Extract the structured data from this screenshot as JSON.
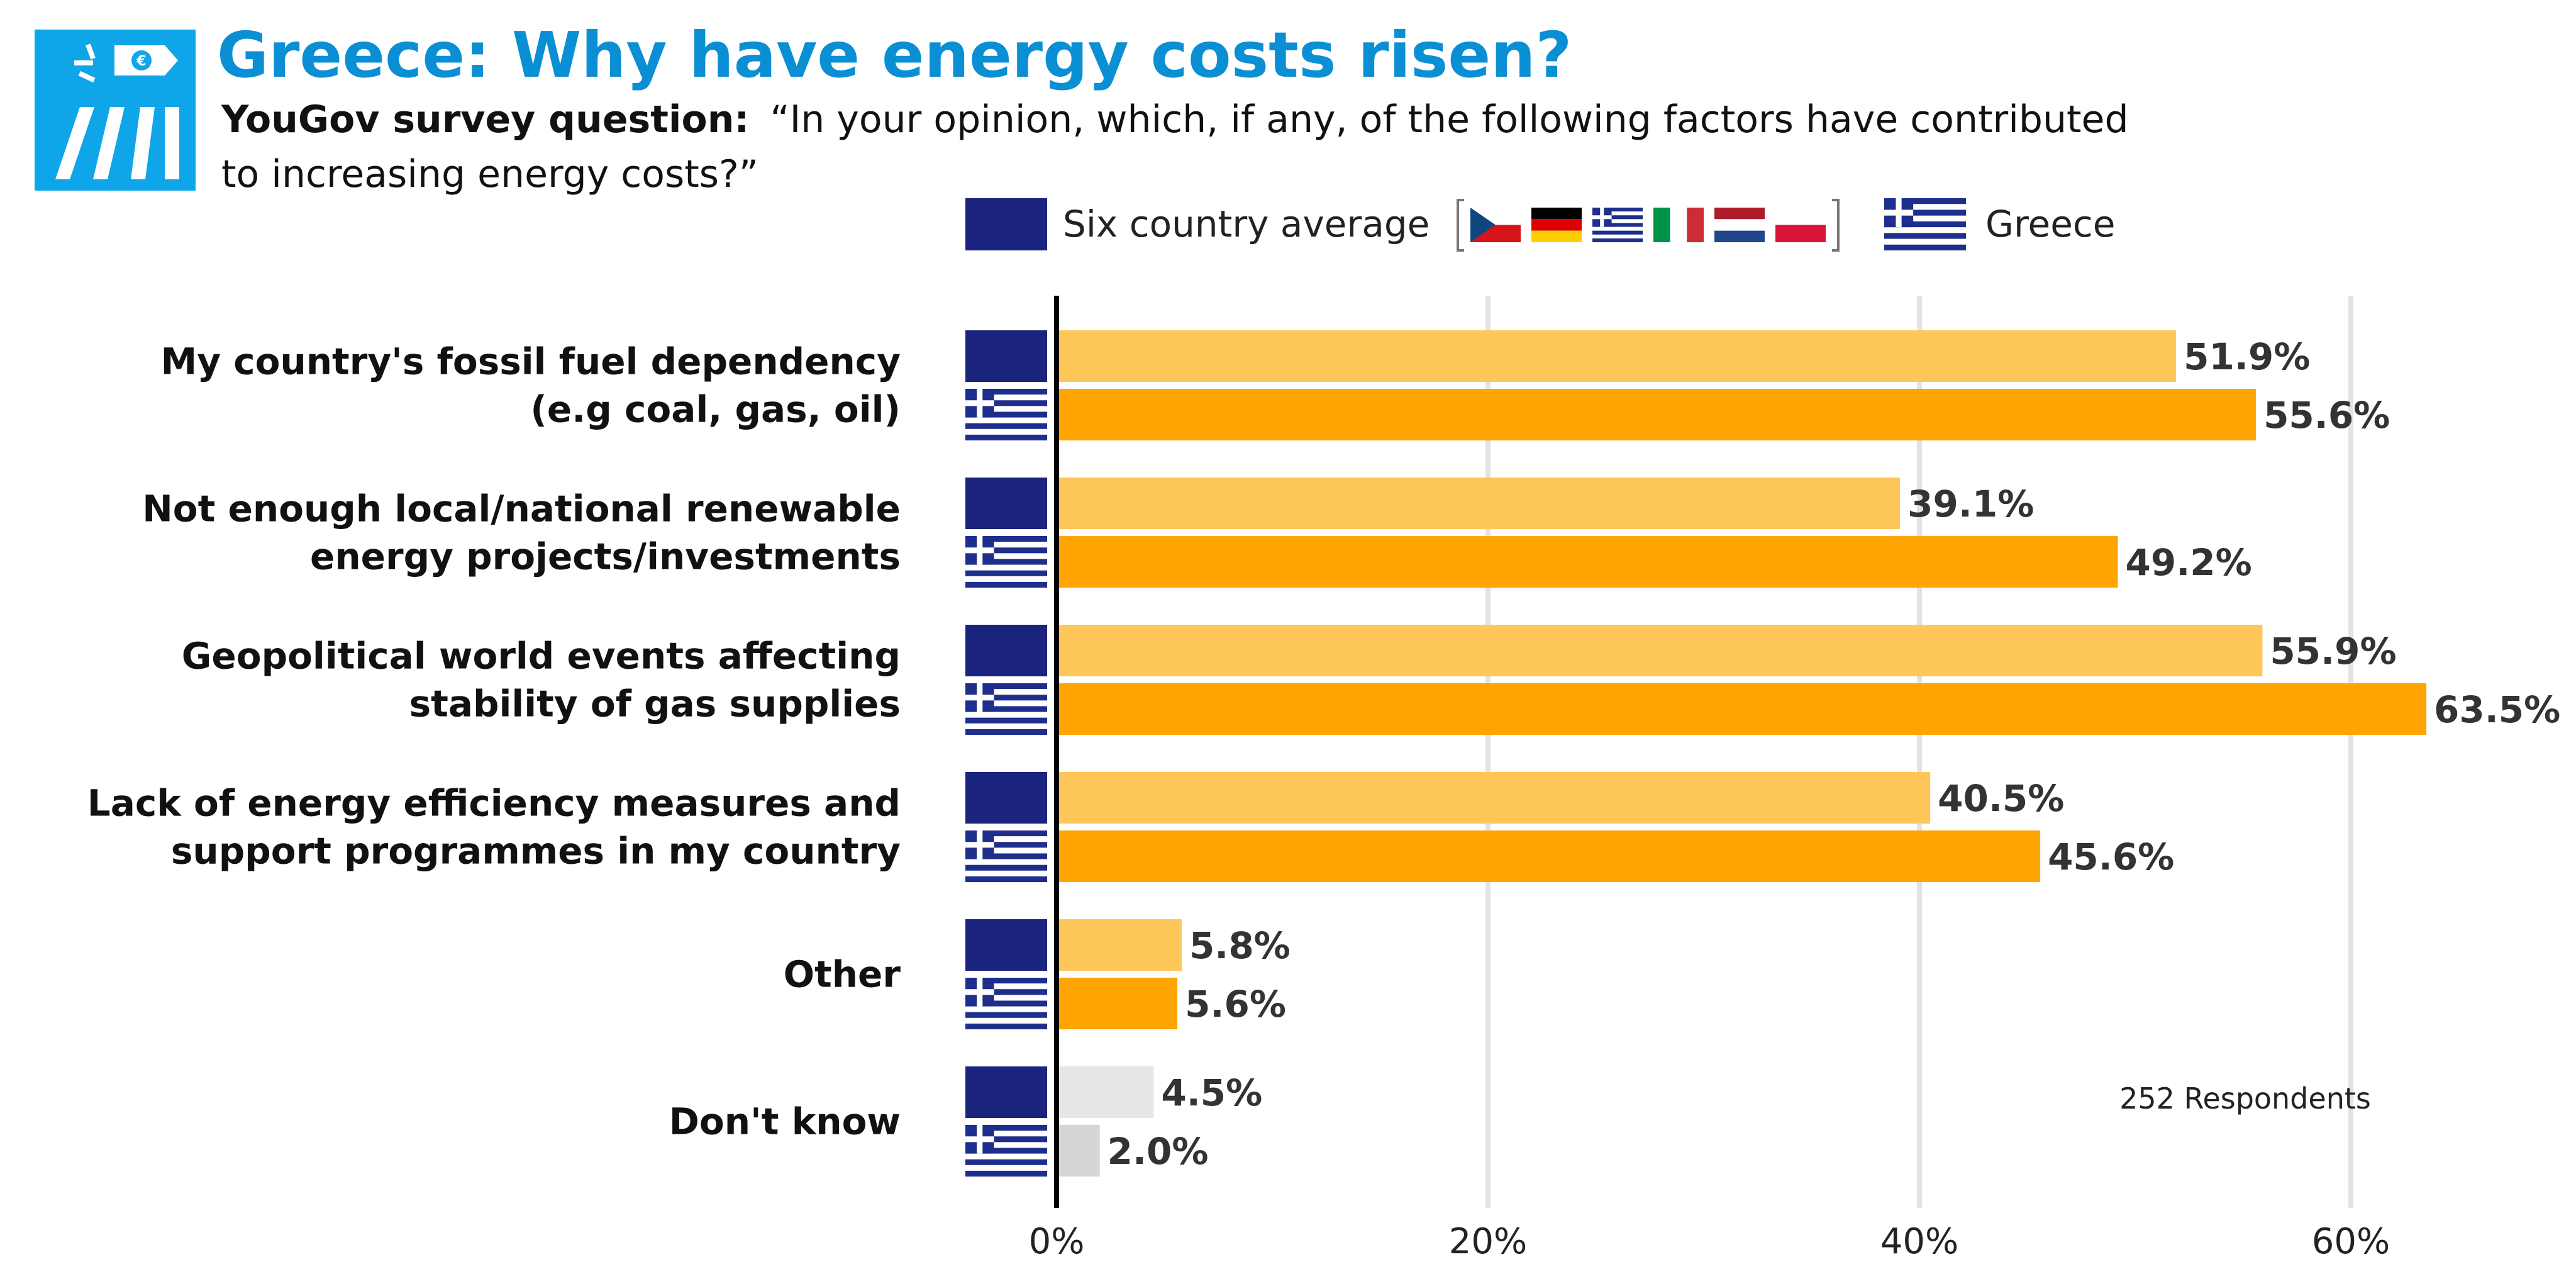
{
  "header": {
    "title": "Greece: Why have energy costs risen?",
    "question_label": "YouGov survey question:",
    "question_line1": "“In your opinion, which, if any, of the following factors have contributed",
    "question_line2": "to increasing energy costs?”",
    "logo_icon": "energy-price-sign-icon"
  },
  "legend": {
    "avg_label": "Six country average",
    "country_label": "Greece",
    "flags": [
      "Czechia",
      "Germany",
      "Greece",
      "Italy",
      "Netherlands",
      "Poland"
    ]
  },
  "note": "252 Respondents",
  "colors": {
    "title": "#0B8FD4",
    "logo_bg": "#0EA5E9",
    "avg_badge": "#1A237E",
    "greek_blue": "#1E2E8C",
    "avg_bar": "#FFC65A",
    "country_bar": "#FFA400",
    "dk_avg_bar": "#E6E6E6",
    "dk_country_bar": "#D6D6D6",
    "grid": "#E3E3E3",
    "axis": "#000000"
  },
  "chart_data": {
    "type": "bar",
    "orientation": "horizontal",
    "categories": [
      [
        "My country's fossil fuel dependency",
        "(e.g coal, gas, oil)"
      ],
      [
        "Not enough local/national renewable",
        "energy projects/investments"
      ],
      [
        "Geopolitical world events affecting",
        "stability of gas supplies"
      ],
      [
        "Lack of energy efficiency measures and",
        "support programmes in my country"
      ],
      [
        "Other"
      ],
      [
        "Don't know"
      ]
    ],
    "series": [
      {
        "name": "Six country average",
        "values": [
          51.9,
          39.1,
          55.9,
          40.5,
          5.8,
          4.5
        ]
      },
      {
        "name": "Greece",
        "values": [
          55.6,
          49.2,
          63.5,
          45.6,
          5.6,
          2.0
        ]
      }
    ],
    "value_labels": [
      [
        "51.9%",
        "39.1%",
        "55.9%",
        "40.5%",
        "5.8%",
        "4.5%"
      ],
      [
        "55.6%",
        "49.2%",
        "63.5%",
        "45.6%",
        "5.6%",
        "2.0%"
      ]
    ],
    "xlim": [
      0,
      67
    ],
    "xticks": [
      0,
      20,
      40,
      60
    ],
    "xtick_labels": [
      "0%",
      "20%",
      "40%",
      "60%"
    ],
    "grid": true,
    "legend_position": "top"
  }
}
